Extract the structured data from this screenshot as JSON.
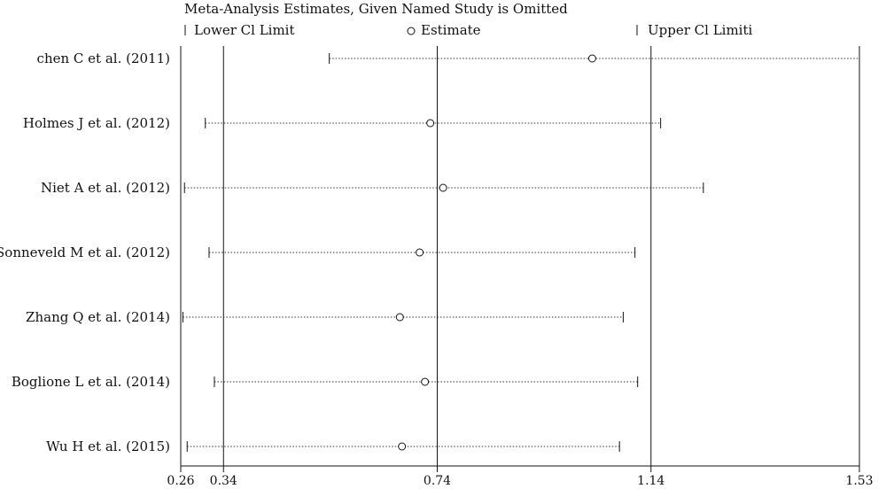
{
  "chart_data": {
    "type": "forest",
    "title": "Meta-Analysis Estimates, Given Named Study is Omitted",
    "legend": {
      "lower": "Lower Cl Limit",
      "estimate": "Estimate",
      "upper": "Upper Cl Limiti"
    },
    "xlim": [
      0.26,
      1.53
    ],
    "xticks": [
      0.26,
      0.34,
      0.74,
      1.14,
      1.53
    ],
    "tick_labels": [
      "0.26",
      "0.34",
      "0.74",
      "1.14",
      "1.53"
    ],
    "reference_lines": {
      "lower": 0.34,
      "estimate": 0.74,
      "upper": 1.14
    },
    "studies": [
      {
        "label": "chen C et al. (2011)",
        "lower": 0.538,
        "estimate": 1.03,
        "upper": 1.53
      },
      {
        "label": "Holmes J et al. (2012)",
        "lower": 0.306,
        "estimate": 0.727,
        "upper": 1.158
      },
      {
        "label": "Niet A et al. (2012)",
        "lower": 0.267,
        "estimate": 0.751,
        "upper": 1.238
      },
      {
        "label": "Sonneveld M et al. (2012)",
        "lower": 0.313,
        "estimate": 0.707,
        "upper": 1.11
      },
      {
        "label": "Zhang Q et al. (2014)",
        "lower": 0.264,
        "estimate": 0.67,
        "upper": 1.088
      },
      {
        "label": "Boglione L et al. (2014)",
        "lower": 0.323,
        "estimate": 0.717,
        "upper": 1.115
      },
      {
        "label": "Wu H et al. (2015)",
        "lower": 0.272,
        "estimate": 0.674,
        "upper": 1.081
      }
    ]
  }
}
